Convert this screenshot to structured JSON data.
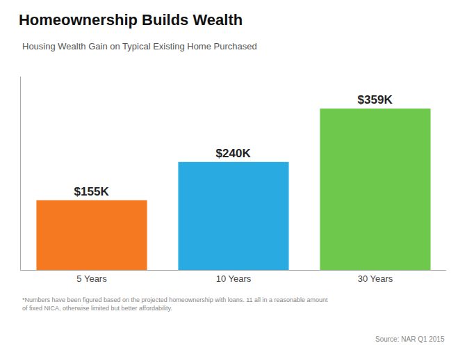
{
  "chart_data": {
    "type": "bar",
    "title": "Homeownership Builds Wealth",
    "subtitle": "Housing Wealth Gain on Typical Existing Home Purchased",
    "categories": [
      "5 Years",
      "10 Years",
      "30 Years"
    ],
    "values": [
      155,
      240,
      359
    ],
    "value_labels": [
      "$155K",
      "$240K",
      "$359K"
    ],
    "data_labels": true,
    "colors": [
      "#F47920",
      "#29ABE2",
      "#6DC84B"
    ],
    "ylim": [
      0,
      430
    ],
    "yticks": [],
    "tick_labels": "x",
    "grid": false,
    "annotations": [
      "*Numbers have been figured based on the projected homeownership with loans. 11 all in a reasonable amount",
      "of fixed NICA, otherwise limited but better affordability.",
      "Source: NAR Q1 2015"
    ]
  }
}
